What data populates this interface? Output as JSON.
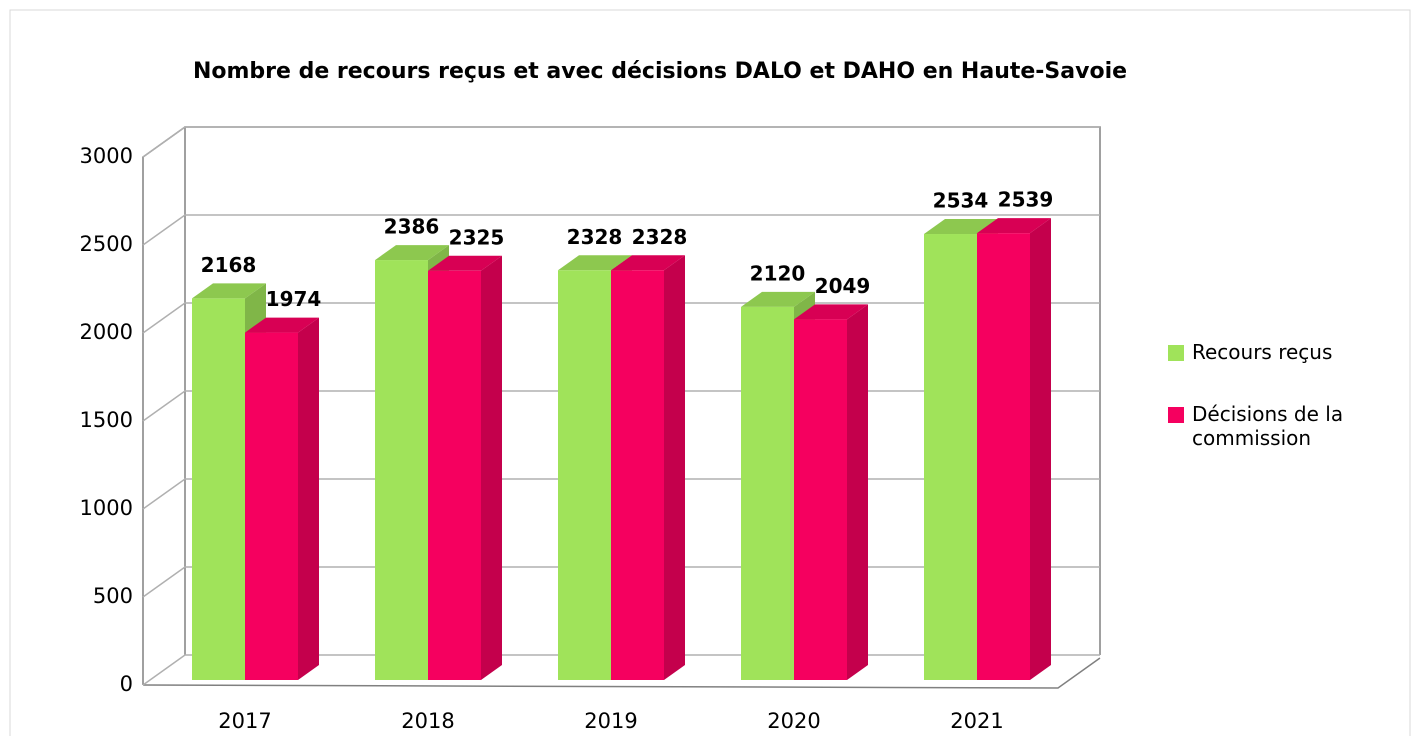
{
  "chart_data": {
    "type": "bar3d",
    "title": "Nombre de recours reçus et avec décisions DALO et DAHO en Haute-Savoie",
    "categories": [
      "2017",
      "2018",
      "2019",
      "2020",
      "2021"
    ],
    "series": [
      {
        "name": "Recours reçus",
        "color": "#a0e35a",
        "values": [
          2168,
          2386,
          2328,
          2120,
          2534
        ]
      },
      {
        "name": "Décisions de la commission",
        "color": "#f5005f",
        "values": [
          1974,
          2325,
          2328,
          2049,
          2539
        ]
      }
    ],
    "ylim": [
      0,
      3000
    ],
    "yticks": [
      0,
      500,
      1000,
      1500,
      2000,
      2500,
      3000
    ],
    "grid": true,
    "legend": "right"
  }
}
